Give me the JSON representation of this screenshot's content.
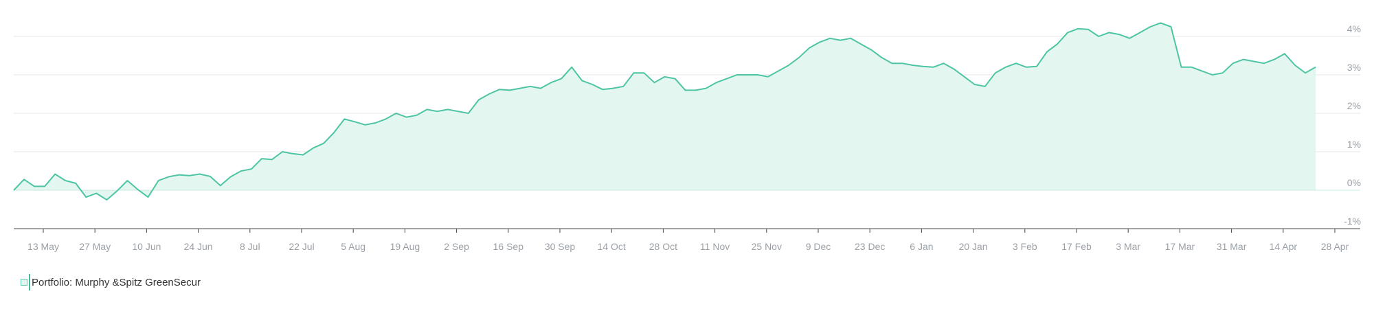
{
  "colors": {
    "line": "#4dc4a3",
    "area": "#e3f6f0",
    "grid": "#e6e6e6",
    "axis": "#4a4a4a",
    "label": "#9aa0a6"
  },
  "legend": {
    "label": "Portfolio: Murphy &Spitz GreenSecur"
  },
  "chart_data": {
    "type": "area",
    "title": "",
    "xlabel": "",
    "ylabel": "",
    "x_ticks": [
      "13 May",
      "27 May",
      "10 Jun",
      "24 Jun",
      "8 Jul",
      "22 Jul",
      "5 Aug",
      "19 Aug",
      "2 Sep",
      "16 Sep",
      "30 Sep",
      "14 Oct",
      "28 Oct",
      "11 Nov",
      "25 Nov",
      "9 Dec",
      "23 Dec",
      "6 Jan",
      "20 Jan",
      "3 Feb",
      "17 Feb",
      "3 Mar",
      "17 Mar",
      "31 Mar",
      "14 Apr",
      "28 Apr"
    ],
    "y_ticks": [
      "-1%",
      "0%",
      "1%",
      "2%",
      "3%",
      "4%"
    ],
    "ylim": [
      -1.0,
      4.3
    ],
    "xlim": [
      0,
      126
    ],
    "grid": true,
    "legend_position": "bottom-left",
    "x": [
      0,
      1,
      2,
      3,
      4,
      5,
      6,
      7,
      8,
      9,
      10,
      11,
      12,
      13,
      14,
      15,
      16,
      17,
      18,
      19,
      20,
      21,
      22,
      23,
      24,
      25,
      26,
      27,
      28,
      29,
      30,
      31,
      32,
      33,
      34,
      35,
      36,
      37,
      38,
      39,
      40,
      41,
      42,
      43,
      44,
      45,
      46,
      47,
      48,
      49,
      50,
      51,
      52,
      53,
      54,
      55,
      56,
      57,
      58,
      59,
      60,
      61,
      62,
      63,
      64,
      65,
      66,
      67,
      68,
      69,
      70,
      71,
      72,
      73,
      74,
      75,
      76,
      77,
      78,
      79,
      80,
      81,
      82,
      83,
      84,
      85,
      86,
      87,
      88,
      89,
      90,
      91,
      92,
      93,
      94,
      95,
      96,
      97,
      98,
      99,
      100,
      101,
      102,
      103,
      104,
      105,
      106,
      107,
      108,
      109,
      110,
      111,
      112,
      113,
      114,
      115,
      116,
      117,
      118,
      119,
      120,
      121,
      122,
      123,
      124,
      125,
      126
    ],
    "series": [
      {
        "values": [
          0.0,
          0.28,
          0.1,
          0.1,
          0.42,
          0.25,
          0.18,
          -0.18,
          -0.08,
          -0.25,
          -0.02,
          0.25,
          0.02,
          -0.18,
          0.25,
          0.35,
          0.4,
          0.38,
          0.42,
          0.36,
          0.12,
          0.35,
          0.5,
          0.55,
          0.82,
          0.8,
          1.0,
          0.95,
          0.92,
          1.1,
          1.22,
          1.5,
          1.85,
          1.78,
          1.7,
          1.75,
          1.85,
          2.0,
          1.9,
          1.95,
          2.1,
          2.05,
          2.1,
          2.05,
          2.0,
          2.35,
          2.5,
          2.62,
          2.6,
          2.65,
          2.7,
          2.65,
          2.8,
          2.9,
          3.2,
          2.85,
          2.75,
          2.62,
          2.65,
          2.7,
          3.05,
          3.05,
          2.8,
          2.95,
          2.9,
          2.6,
          2.6,
          2.65,
          2.8,
          2.9,
          3.0,
          3.0,
          3.0,
          2.95,
          3.1,
          3.25,
          3.45,
          3.7,
          3.85,
          3.95,
          3.9,
          3.95,
          3.8,
          3.65,
          3.45,
          3.3,
          3.3,
          3.25,
          3.22,
          3.2,
          3.3,
          3.15,
          2.95,
          2.75,
          2.7,
          3.05,
          3.2,
          3.3,
          3.2,
          3.22,
          3.6,
          3.8,
          4.1,
          4.2,
          4.18,
          4.0,
          4.1,
          4.05,
          3.95,
          4.1,
          4.25,
          4.35,
          4.25,
          3.2,
          3.2,
          3.1,
          3.0,
          3.05,
          3.3,
          3.4,
          3.35,
          3.3,
          3.4,
          3.55,
          3.25,
          3.05,
          3.2
        ]
      }
    ]
  }
}
